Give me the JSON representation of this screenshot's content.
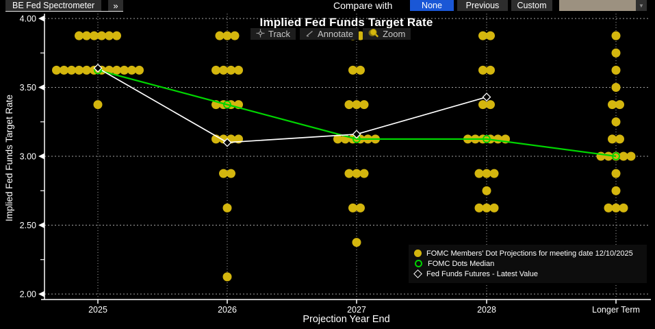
{
  "topbar": {
    "app_button": "BE Fed Spectrometer",
    "expand_button": "»",
    "compare_label": "Compare with",
    "options": [
      {
        "label": "None",
        "selected": true
      },
      {
        "label": "Previous",
        "selected": false
      },
      {
        "label": "Custom",
        "selected": false
      }
    ],
    "dropdown_value": ""
  },
  "toolbar": {
    "track": "Track",
    "annotate": "Annotate",
    "zoom": "Zoom"
  },
  "colors": {
    "background": "#000000",
    "dot": "#d4b60e",
    "median_line": "#00d500",
    "futures_line": "#ffffff",
    "selected_button_bg": "#1a57d6",
    "button_bg": "#2d2d2d",
    "dropdown_bg": "#9c9180",
    "gridline": "#cfcfcf",
    "axis": "#ffffff"
  },
  "chart_data": {
    "type": "scatter",
    "title": "Implied Fed Funds Target Rate",
    "xlabel": "Projection Year End",
    "ylabel": "Implied Fed Funds Target Rate",
    "categories": [
      "2025",
      "2026",
      "2027",
      "2028",
      "Longer Term"
    ],
    "ylim": [
      2.0,
      4.0
    ],
    "grid": true,
    "yticks": [
      {
        "value": 4.0,
        "label": "4.00"
      },
      {
        "value": 3.5,
        "label": "3.50"
      },
      {
        "value": 3.0,
        "label": "3.00"
      },
      {
        "value": 2.5,
        "label": "2.50"
      },
      {
        "value": 2.0,
        "label": "2.00"
      }
    ],
    "yticks_minor": [
      3.75,
      3.25,
      2.75,
      2.25
    ],
    "dot_projections": [
      {
        "category": "2025",
        "points": [
          {
            "value": 3.875,
            "count": 6
          },
          {
            "value": 3.625,
            "count": 12
          },
          {
            "value": 3.375,
            "count": 1
          }
        ]
      },
      {
        "category": "2026",
        "points": [
          {
            "value": 3.875,
            "count": 3
          },
          {
            "value": 3.625,
            "count": 4
          },
          {
            "value": 3.375,
            "count": 4
          },
          {
            "value": 3.125,
            "count": 4
          },
          {
            "value": 2.875,
            "count": 2
          },
          {
            "value": 2.625,
            "count": 1
          },
          {
            "value": 2.125,
            "count": 1
          }
        ]
      },
      {
        "category": "2027",
        "points": [
          {
            "value": 3.875,
            "count": 2
          },
          {
            "value": 3.625,
            "count": 2
          },
          {
            "value": 3.375,
            "count": 3
          },
          {
            "value": 3.125,
            "count": 6
          },
          {
            "value": 2.875,
            "count": 3
          },
          {
            "value": 2.625,
            "count": 2
          },
          {
            "value": 2.375,
            "count": 1
          }
        ]
      },
      {
        "category": "2028",
        "points": [
          {
            "value": 3.875,
            "count": 2
          },
          {
            "value": 3.625,
            "count": 2
          },
          {
            "value": 3.375,
            "count": 2
          },
          {
            "value": 3.125,
            "count": 6
          },
          {
            "value": 2.875,
            "count": 3
          },
          {
            "value": 2.75,
            "count": 1
          },
          {
            "value": 2.625,
            "count": 3
          }
        ]
      },
      {
        "category": "Longer Term",
        "points": [
          {
            "value": 3.875,
            "count": 1
          },
          {
            "value": 3.75,
            "count": 1
          },
          {
            "value": 3.625,
            "count": 1
          },
          {
            "value": 3.5,
            "count": 1
          },
          {
            "value": 3.375,
            "count": 2
          },
          {
            "value": 3.25,
            "count": 1
          },
          {
            "value": 3.125,
            "count": 2
          },
          {
            "value": 3.0,
            "count": 5
          },
          {
            "value": 2.875,
            "count": 1
          },
          {
            "value": 2.75,
            "count": 1
          },
          {
            "value": 2.625,
            "count": 3
          }
        ]
      }
    ],
    "series": [
      {
        "name": "FOMC Dots Median",
        "type": "line",
        "marker": "open-circle",
        "color": "#00d500",
        "categories": [
          "2025",
          "2026",
          "2027",
          "2028",
          "Longer Term"
        ],
        "values": [
          3.625,
          3.375,
          3.125,
          3.125,
          3.0
        ]
      },
      {
        "name": "Fed Funds Futures - Latest Value",
        "type": "line",
        "marker": "open-diamond",
        "color": "#ffffff",
        "categories": [
          "2025",
          "2026",
          "2027",
          "2028"
        ],
        "values": [
          3.64,
          3.1,
          3.16,
          3.43
        ]
      }
    ],
    "legend": [
      {
        "marker": "filled-circle",
        "color": "#d4b60e",
        "label": "FOMC Members' Dot Projections for meeting date 12/10/2025"
      },
      {
        "marker": "open-circle",
        "color": "#00d500",
        "label": "FOMC Dots Median"
      },
      {
        "marker": "open-diamond",
        "color": "#ffffff",
        "label": "Fed Funds Futures - Latest Value"
      }
    ],
    "legend_position": "bottom-right"
  }
}
